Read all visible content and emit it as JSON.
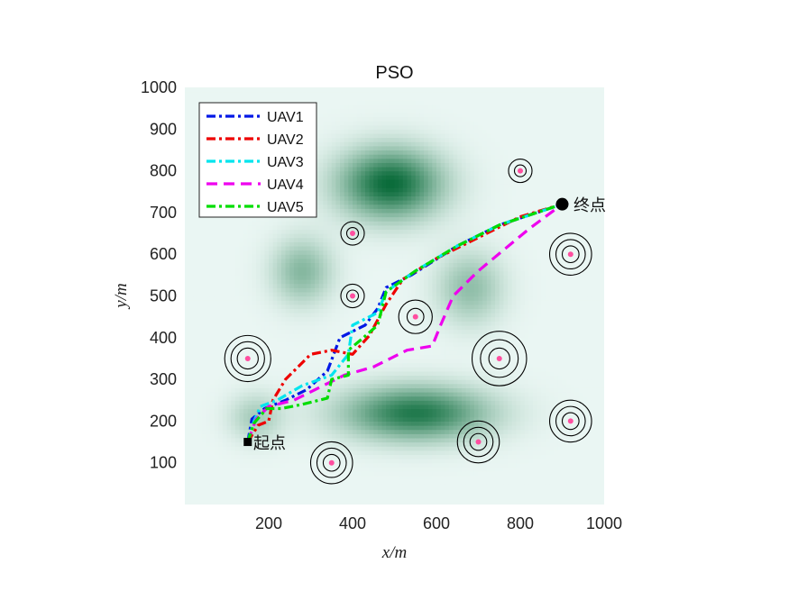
{
  "chart_data": {
    "type": "line",
    "title": "PSO",
    "xlabel": "x/m",
    "ylabel": "y/m",
    "xlim": [
      0,
      1000
    ],
    "ylim": [
      0,
      1000
    ],
    "xticks": [
      200,
      400,
      600,
      800,
      1000
    ],
    "yticks": [
      100,
      200,
      300,
      400,
      500,
      600,
      700,
      800,
      900,
      1000
    ],
    "legend_position": "top-left",
    "terrain": {
      "colormap": [
        "#eaf6f3",
        "#0a6b3a"
      ],
      "peaks": [
        {
          "x": 490,
          "y": 770,
          "sx": 85,
          "sy": 58,
          "h": 1.0
        },
        {
          "x": 550,
          "y": 220,
          "sx": 120,
          "sy": 45,
          "h": 0.9
        },
        {
          "x": 280,
          "y": 560,
          "sx": 50,
          "sy": 55,
          "h": 0.45
        },
        {
          "x": 680,
          "y": 520,
          "sx": 55,
          "sy": 60,
          "h": 0.4
        },
        {
          "x": 170,
          "y": 210,
          "sx": 45,
          "sy": 40,
          "h": 0.3
        }
      ]
    },
    "threats": [
      {
        "x": 150,
        "y": 350,
        "radii": [
          25,
          40,
          55
        ]
      },
      {
        "x": 350,
        "y": 100,
        "radii": [
          20,
          35,
          50
        ]
      },
      {
        "x": 400,
        "y": 650,
        "radii": [
          14,
          28
        ]
      },
      {
        "x": 400,
        "y": 500,
        "radii": [
          14,
          28
        ]
      },
      {
        "x": 550,
        "y": 450,
        "radii": [
          20,
          40
        ]
      },
      {
        "x": 700,
        "y": 150,
        "radii": [
          20,
          35,
          50
        ]
      },
      {
        "x": 750,
        "y": 350,
        "radii": [
          25,
          45,
          65
        ]
      },
      {
        "x": 800,
        "y": 800,
        "radii": [
          14,
          28
        ]
      },
      {
        "x": 920,
        "y": 600,
        "radii": [
          20,
          35,
          50
        ]
      },
      {
        "x": 920,
        "y": 200,
        "radii": [
          20,
          35,
          50
        ]
      }
    ],
    "start": {
      "x": 150,
      "y": 150,
      "label": "起点"
    },
    "end": {
      "x": 900,
      "y": 720,
      "label": "终点"
    },
    "series": [
      {
        "name": "UAV1",
        "color": "#0018e6",
        "dash": "dashdot",
        "points": [
          [
            150,
            150
          ],
          [
            160,
            205
          ],
          [
            190,
            230
          ],
          [
            240,
            250
          ],
          [
            290,
            275
          ],
          [
            340,
            320
          ],
          [
            370,
            400
          ],
          [
            430,
            430
          ],
          [
            460,
            470
          ],
          [
            480,
            520
          ],
          [
            540,
            550
          ],
          [
            650,
            620
          ],
          [
            750,
            670
          ],
          [
            900,
            720
          ]
        ]
      },
      {
        "name": "UAV2",
        "color": "#ee0000",
        "dash": "dashdot",
        "points": [
          [
            150,
            150
          ],
          [
            175,
            190
          ],
          [
            200,
            200
          ],
          [
            210,
            250
          ],
          [
            240,
            300
          ],
          [
            300,
            360
          ],
          [
            350,
            370
          ],
          [
            400,
            360
          ],
          [
            440,
            405
          ],
          [
            480,
            480
          ],
          [
            520,
            540
          ],
          [
            600,
            590
          ],
          [
            700,
            640
          ],
          [
            800,
            690
          ],
          [
            900,
            720
          ]
        ]
      },
      {
        "name": "UAV3",
        "color": "#00e5ee",
        "dash": "dashdot",
        "points": [
          [
            150,
            150
          ],
          [
            165,
            200
          ],
          [
            180,
            235
          ],
          [
            220,
            250
          ],
          [
            280,
            285
          ],
          [
            350,
            310
          ],
          [
            390,
            360
          ],
          [
            400,
            430
          ],
          [
            460,
            460
          ],
          [
            480,
            510
          ],
          [
            550,
            560
          ],
          [
            650,
            620
          ],
          [
            750,
            670
          ],
          [
            900,
            720
          ]
        ]
      },
      {
        "name": "UAV4",
        "color": "#ee00ee",
        "dash": "dash",
        "points": [
          [
            150,
            150
          ],
          [
            170,
            205
          ],
          [
            200,
            235
          ],
          [
            260,
            250
          ],
          [
            310,
            275
          ],
          [
            380,
            310
          ],
          [
            450,
            330
          ],
          [
            530,
            370
          ],
          [
            590,
            380
          ],
          [
            610,
            430
          ],
          [
            640,
            500
          ],
          [
            700,
            560
          ],
          [
            760,
            610
          ],
          [
            820,
            660
          ],
          [
            900,
            720
          ]
        ]
      },
      {
        "name": "UAV5",
        "color": "#00dd00",
        "dash": "dashdot",
        "points": [
          [
            150,
            150
          ],
          [
            165,
            195
          ],
          [
            195,
            230
          ],
          [
            230,
            230
          ],
          [
            280,
            240
          ],
          [
            340,
            255
          ],
          [
            350,
            300
          ],
          [
            390,
            310
          ],
          [
            390,
            370
          ],
          [
            420,
            395
          ],
          [
            460,
            430
          ],
          [
            480,
            510
          ],
          [
            550,
            560
          ],
          [
            650,
            620
          ],
          [
            750,
            670
          ],
          [
            900,
            720
          ]
        ]
      }
    ]
  }
}
